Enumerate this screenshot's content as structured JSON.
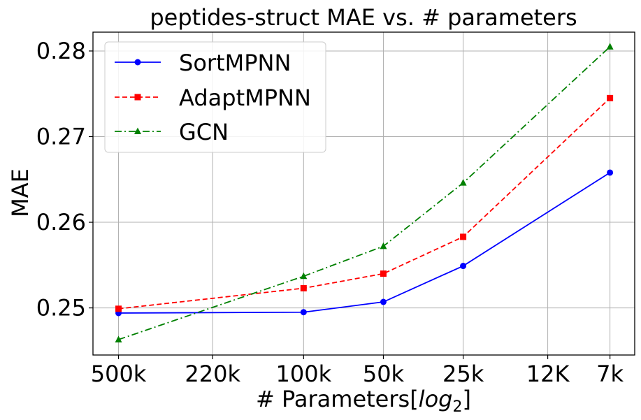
{
  "chart_data": {
    "type": "line",
    "title": "peptides-struct MAE vs. # parameters",
    "xlabel": "# Parameters",
    "xlabel_math": "log",
    "xlabel_sub": "2",
    "ylabel": "MAE",
    "categories": [
      "500k",
      "220k",
      "100k",
      "50k",
      "25k",
      "12K",
      "7k"
    ],
    "x": [
      500000,
      100000,
      50000,
      25000,
      7000
    ],
    "x_log2": [
      18.93,
      16.61,
      15.61,
      14.61,
      12.77
    ],
    "xlim_log2": [
      19.25,
      12.46
    ],
    "x_ticks_log2": [
      18.93,
      17.75,
      16.61,
      15.61,
      14.61,
      13.55,
      12.77
    ],
    "ylim": [
      0.2445,
      0.2822
    ],
    "y_ticks": [
      0.25,
      0.26,
      0.27,
      0.28
    ],
    "y_tick_labels": [
      "0.25",
      "0.26",
      "0.27",
      "0.28"
    ],
    "grid": true,
    "legend_position": "upper-left",
    "series": [
      {
        "name": "SortMPNN",
        "color": "#0000ff",
        "linestyle": "solid",
        "marker": "circle",
        "values": [
          0.2494,
          0.2495,
          0.2507,
          0.2549,
          0.2658
        ]
      },
      {
        "name": "AdaptMPNN",
        "color": "#ff0000",
        "linestyle": "dashed",
        "marker": "square",
        "values": [
          0.2499,
          0.2523,
          0.254,
          0.2583,
          0.2745
        ]
      },
      {
        "name": "GCN",
        "color": "#008000",
        "linestyle": "dashdot",
        "marker": "triangle",
        "values": [
          0.2463,
          0.2537,
          0.2572,
          0.2646,
          0.2805
        ]
      }
    ]
  }
}
